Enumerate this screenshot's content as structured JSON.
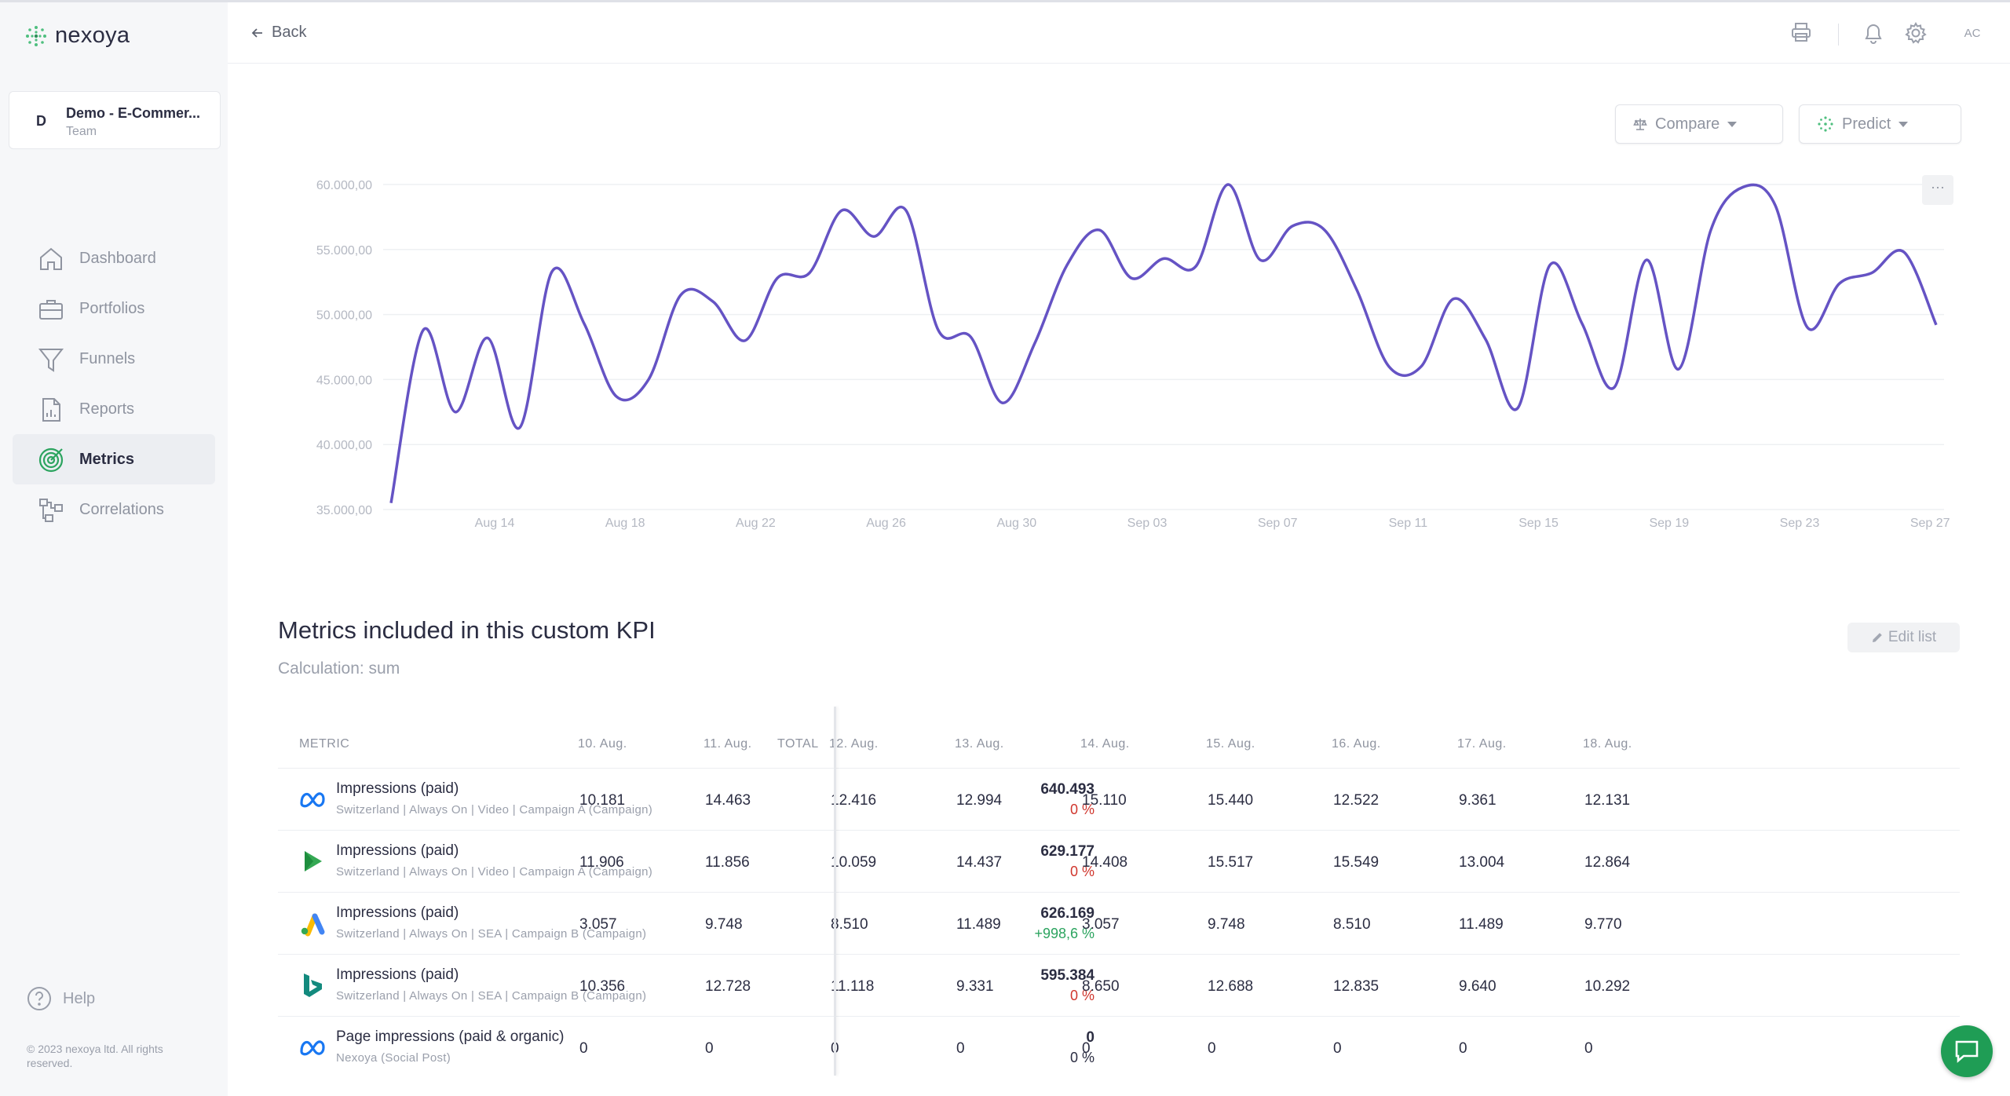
{
  "app": {
    "name": "nexoya"
  },
  "team": {
    "initial": "D",
    "name": "Demo - E-Commer...",
    "sub": "Team"
  },
  "nav": [
    {
      "label": "Dashboard",
      "icon": "home-icon",
      "active": false
    },
    {
      "label": "Portfolios",
      "icon": "briefcase-icon",
      "active": false
    },
    {
      "label": "Funnels",
      "icon": "funnel-icon",
      "active": false
    },
    {
      "label": "Reports",
      "icon": "report-icon",
      "active": false
    },
    {
      "label": "Metrics",
      "icon": "metrics-icon",
      "active": true
    },
    {
      "label": "Correlations",
      "icon": "correlations-icon",
      "active": false
    }
  ],
  "help_label": "Help",
  "copyright": "© 2023 nexoya ltd. All rights reserved.",
  "header": {
    "back_label": "Back",
    "avatar_initials": "AC"
  },
  "buttons": {
    "compare": "Compare",
    "predict": "Predict",
    "more": "···",
    "edit_list": "Edit list"
  },
  "colors": {
    "accent": "#6553c4",
    "positive": "#2ca45f",
    "negative": "#d0362d",
    "chat": "#1f9d55"
  },
  "chart_data": {
    "type": "line",
    "y_ticks": [
      "60.000,00",
      "55.000,00",
      "50.000,00",
      "45.000,00",
      "40.000,00",
      "35.000,00"
    ],
    "x_ticks": [
      "Aug 14",
      "Aug 18",
      "Aug 22",
      "Aug 26",
      "Aug 30",
      "Sep 03",
      "Sep 07",
      "Sep 11",
      "Sep 15",
      "Sep 19",
      "Sep 23",
      "Sep 27"
    ],
    "ylim": [
      35000,
      60000
    ],
    "grid": true,
    "series": [
      {
        "values": [
          35500,
          48800,
          42500,
          48200,
          41300,
          53300,
          49300,
          43700,
          45000,
          51500,
          51000,
          48000,
          52800,
          53200,
          58000,
          56000,
          58000,
          48800,
          48300,
          43200,
          47800,
          53800,
          56500,
          52800,
          54300,
          53700,
          60000,
          54200,
          56800,
          56500,
          51900,
          46000,
          46000,
          51200,
          48100,
          42800,
          53800,
          49300,
          44400,
          54200,
          45800,
          56500,
          59800,
          58400,
          49000,
          52400,
          53200,
          54800,
          49200
        ]
      }
    ]
  },
  "section": {
    "title": "Metrics included in this custom KPI",
    "subtitle": "Calculation: sum"
  },
  "table": {
    "headers": {
      "metric": "METRIC",
      "total": "TOTAL",
      "dates": [
        "10. Aug.",
        "11. Aug.",
        "12. Aug.",
        "13. Aug.",
        "14. Aug.",
        "15. Aug.",
        "16. Aug.",
        "17. Aug.",
        "18. Aug."
      ]
    },
    "rows": [
      {
        "icon": "meta-icon",
        "name": "Impressions (paid)",
        "sub": "Switzerland | Always On | Video | Campaign A  (Campaign)",
        "total": "640.493",
        "delta": "0 %",
        "delta_kind": "negative",
        "values": [
          "10.181",
          "14.463",
          "12.416",
          "12.994",
          "15.110",
          "15.440",
          "12.522",
          "9.361",
          "12.131"
        ]
      },
      {
        "icon": "dv360-icon",
        "name": "Impressions (paid)",
        "sub": "Switzerland | Always On | Video | Campaign A  (Campaign)",
        "total": "629.177",
        "delta": "0 %",
        "delta_kind": "negative",
        "values": [
          "11.906",
          "11.856",
          "10.059",
          "14.437",
          "14.408",
          "15.517",
          "15.549",
          "13.004",
          "12.864"
        ]
      },
      {
        "icon": "google-ads-icon",
        "name": "Impressions (paid)",
        "sub": "Switzerland | Always On | SEA | Campaign B  (Campaign)",
        "total": "626.169",
        "delta": "+998,6 %",
        "delta_kind": "positive",
        "values": [
          "3.057",
          "9.748",
          "8.510",
          "11.489",
          "3.057",
          "9.748",
          "8.510",
          "11.489",
          "9.770"
        ]
      },
      {
        "icon": "bing-icon",
        "name": "Impressions (paid)",
        "sub": "Switzerland | Always On | SEA | Campaign B  (Campaign)",
        "total": "595.384",
        "delta": "0 %",
        "delta_kind": "negative",
        "values": [
          "10.356",
          "12.728",
          "11.118",
          "9.331",
          "8.650",
          "12.688",
          "12.835",
          "9.640",
          "10.292"
        ]
      },
      {
        "icon": "meta-icon",
        "name": "Page impressions (paid & organic)",
        "sub": "Nexoya  (Social Post)",
        "total": "0",
        "delta": "0 %",
        "delta_kind": "neutral",
        "values": [
          "0",
          "0",
          "0",
          "0",
          "0",
          "0",
          "0",
          "0",
          "0"
        ]
      }
    ]
  }
}
